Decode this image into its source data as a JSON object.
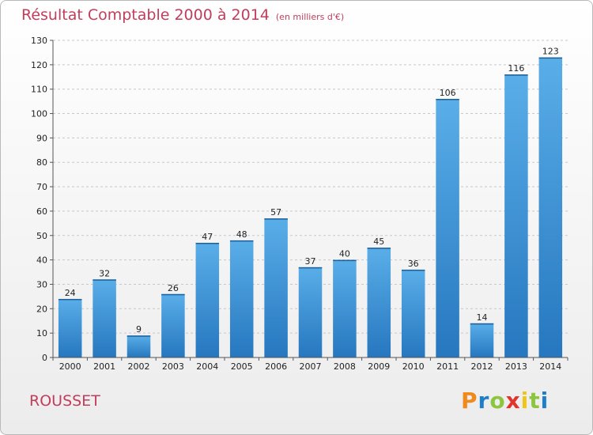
{
  "header": {
    "title": "Résultat Comptable 2000 à 2014",
    "subtitle": "(en milliers d'€)"
  },
  "footer": {
    "commune": "ROUSSET",
    "logo_letters": [
      "P",
      "r",
      "o",
      "x",
      "i",
      "t",
      "i"
    ],
    "logo_colors": [
      "#f08a1d",
      "#1e7fc8",
      "#8cc63f",
      "#e0342c",
      "#f0c419",
      "#8cc63f",
      "#1e7fc8"
    ]
  },
  "chart_data": {
    "type": "bar",
    "title": "Résultat Comptable 2000 à 2014",
    "subtitle": "(en milliers d'€)",
    "xlabel": "",
    "ylabel": "",
    "categories": [
      "2000",
      "2001",
      "2002",
      "2003",
      "2004",
      "2005",
      "2006",
      "2007",
      "2008",
      "2009",
      "2010",
      "2011",
      "2012",
      "2013",
      "2014"
    ],
    "values": [
      24,
      32,
      9,
      26,
      47,
      48,
      57,
      37,
      40,
      45,
      36,
      106,
      14,
      116,
      123
    ],
    "ylim": [
      0,
      130
    ],
    "yticks": [
      0,
      10,
      20,
      30,
      40,
      50,
      60,
      70,
      80,
      90,
      100,
      110,
      120,
      130
    ],
    "grid": "horizontal dashed",
    "bar_color": "#3c8fd6"
  }
}
